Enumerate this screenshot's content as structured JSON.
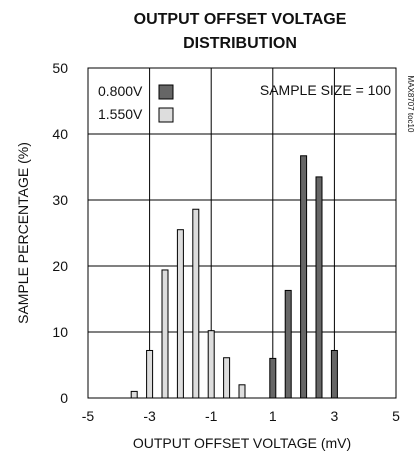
{
  "chart_data": {
    "type": "bar",
    "title_lines": [
      "OUTPUT OFFSET VOLTAGE",
      "DISTRIBUTION"
    ],
    "xlabel": "OUTPUT OFFSET VOLTAGE (mV)",
    "ylabel": "SAMPLE PERCENTAGE (%)",
    "xlim": [
      -5,
      5
    ],
    "ylim": [
      0,
      50
    ],
    "xticks": [
      "-5",
      "-3",
      "-1",
      "1",
      "3",
      "5"
    ],
    "yticks": [
      "0",
      "10",
      "20",
      "30",
      "40",
      "50"
    ],
    "grid": true,
    "legend_position": "top-left",
    "annotation": "SAMPLE SIZE = 100",
    "side_code": "MAX8707 toc10",
    "series": [
      {
        "name": "0.800V",
        "color": "#666666",
        "points": [
          {
            "x": 1.0,
            "y": 6
          },
          {
            "x": 1.5,
            "y": 16.3
          },
          {
            "x": 2.0,
            "y": 36.7
          },
          {
            "x": 2.5,
            "y": 33.5
          },
          {
            "x": 3.0,
            "y": 7.2
          }
        ]
      },
      {
        "name": "1.550V",
        "color": "#dddddd",
        "points": [
          {
            "x": -3.5,
            "y": 1
          },
          {
            "x": -3.0,
            "y": 7.2
          },
          {
            "x": -2.5,
            "y": 19.4
          },
          {
            "x": -2.0,
            "y": 25.5
          },
          {
            "x": -1.5,
            "y": 28.6
          },
          {
            "x": -1.0,
            "y": 10.2
          },
          {
            "x": -0.5,
            "y": 6.1
          },
          {
            "x": 0.0,
            "y": 2.0
          }
        ]
      }
    ]
  }
}
